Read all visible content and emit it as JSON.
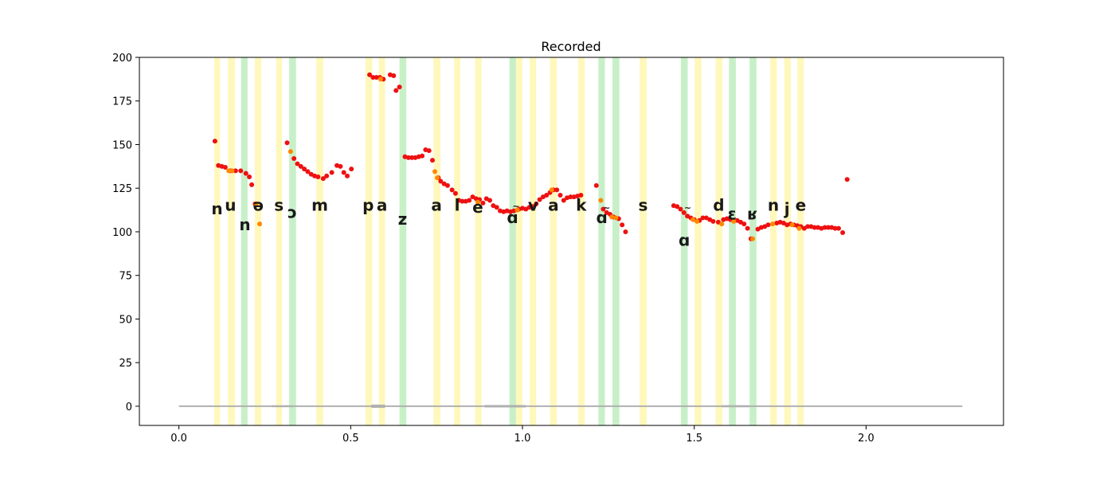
{
  "chart_data": {
    "type": "scatter",
    "title": "Recorded",
    "xlabel": "",
    "ylabel": "",
    "xlim": [
      -0.115,
      2.4
    ],
    "ylim": [
      -11,
      200
    ],
    "x_ticks": [
      0.0,
      0.5,
      1.0,
      1.5,
      2.0
    ],
    "x_tick_labels": [
      "0.0",
      "0.5",
      "1.0",
      "1.5",
      "2.0"
    ],
    "y_ticks": [
      0,
      25,
      50,
      75,
      100,
      125,
      150,
      175,
      200
    ],
    "y_tick_labels": [
      "0",
      "25",
      "50",
      "75",
      "100",
      "125",
      "150",
      "175",
      "200"
    ],
    "grid": false,
    "colors": {
      "pitch_red": "#ee1111",
      "pitch_orange": "#ff8800",
      "band_yellow": "#fff27a",
      "band_green": "#9be39b",
      "waveform": "#b0b0b0",
      "phoneme_text": "#1a1a1a"
    },
    "waveform": {
      "x_start": 0.0,
      "x_end": 2.28,
      "y": 0
    },
    "phoneme_bands": [
      {
        "x0": 0.103,
        "x1": 0.12,
        "kind": "yellow"
      },
      {
        "x0": 0.143,
        "x1": 0.163,
        "kind": "yellow"
      },
      {
        "x0": 0.181,
        "x1": 0.2,
        "kind": "green"
      },
      {
        "x0": 0.221,
        "x1": 0.24,
        "kind": "yellow"
      },
      {
        "x0": 0.283,
        "x1": 0.3,
        "kind": "yellow"
      },
      {
        "x0": 0.321,
        "x1": 0.341,
        "kind": "green"
      },
      {
        "x0": 0.4,
        "x1": 0.42,
        "kind": "yellow"
      },
      {
        "x0": 0.543,
        "x1": 0.563,
        "kind": "yellow"
      },
      {
        "x0": 0.582,
        "x1": 0.6,
        "kind": "yellow"
      },
      {
        "x0": 0.642,
        "x1": 0.662,
        "kind": "green"
      },
      {
        "x0": 0.741,
        "x1": 0.761,
        "kind": "yellow"
      },
      {
        "x0": 0.801,
        "x1": 0.819,
        "kind": "yellow"
      },
      {
        "x0": 0.862,
        "x1": 0.881,
        "kind": "yellow"
      },
      {
        "x0": 0.962,
        "x1": 0.981,
        "kind": "green"
      },
      {
        "x0": 0.981,
        "x1": 1.0,
        "kind": "yellow"
      },
      {
        "x0": 1.021,
        "x1": 1.04,
        "kind": "yellow"
      },
      {
        "x0": 1.08,
        "x1": 1.1,
        "kind": "yellow"
      },
      {
        "x0": 1.162,
        "x1": 1.181,
        "kind": "yellow"
      },
      {
        "x0": 1.221,
        "x1": 1.24,
        "kind": "green"
      },
      {
        "x0": 1.262,
        "x1": 1.282,
        "kind": "green"
      },
      {
        "x0": 1.341,
        "x1": 1.362,
        "kind": "yellow"
      },
      {
        "x0": 1.461,
        "x1": 1.481,
        "kind": "green"
      },
      {
        "x0": 1.501,
        "x1": 1.521,
        "kind": "yellow"
      },
      {
        "x0": 1.562,
        "x1": 1.582,
        "kind": "yellow"
      },
      {
        "x0": 1.601,
        "x1": 1.621,
        "kind": "green"
      },
      {
        "x0": 1.661,
        "x1": 1.681,
        "kind": "green"
      },
      {
        "x0": 1.721,
        "x1": 1.74,
        "kind": "yellow"
      },
      {
        "x0": 1.762,
        "x1": 1.781,
        "kind": "yellow"
      },
      {
        "x0": 1.8,
        "x1": 1.819,
        "kind": "yellow"
      }
    ],
    "phoneme_labels": [
      {
        "text": "n",
        "x": 0.111,
        "y": 110
      },
      {
        "text": "u",
        "x": 0.15,
        "y": 112
      },
      {
        "text": "n",
        "x": 0.192,
        "y": 101
      },
      {
        "text": "ə",
        "x": 0.231,
        "y": 112
      },
      {
        "text": "s",
        "x": 0.291,
        "y": 112
      },
      {
        "text": "ɔ",
        "x": 0.33,
        "y": 108
      },
      {
        "text": "m",
        "x": 0.41,
        "y": 112
      },
      {
        "text": "p",
        "x": 0.551,
        "y": 112
      },
      {
        "text": "a",
        "x": 0.591,
        "y": 112
      },
      {
        "text": "z",
        "x": 0.651,
        "y": 104
      },
      {
        "text": "a",
        "x": 0.75,
        "y": 112
      },
      {
        "text": "l",
        "x": 0.81,
        "y": 112
      },
      {
        "text": "e",
        "x": 0.87,
        "y": 111
      },
      {
        "text": "ɑ",
        "x": 0.971,
        "y": 105
      },
      {
        "text": "~",
        "x": 0.981,
        "y": 113
      },
      {
        "text": "v",
        "x": 1.031,
        "y": 112
      },
      {
        "text": "a",
        "x": 1.09,
        "y": 112
      },
      {
        "text": "k",
        "x": 1.171,
        "y": 112
      },
      {
        "text": "ɑ",
        "x": 1.231,
        "y": 105
      },
      {
        "text": "~",
        "x": 1.245,
        "y": 112
      },
      {
        "text": "s",
        "x": 1.351,
        "y": 112
      },
      {
        "text": "ɑ",
        "x": 1.471,
        "y": 92
      },
      {
        "text": "~",
        "x": 1.481,
        "y": 112
      },
      {
        "text": "d",
        "x": 1.571,
        "y": 112
      },
      {
        "text": "ɛ",
        "x": 1.61,
        "y": 107
      },
      {
        "text": "ʁ",
        "x": 1.67,
        "y": 107
      },
      {
        "text": "n",
        "x": 1.73,
        "y": 112
      },
      {
        "text": "j",
        "x": 1.77,
        "y": 110
      },
      {
        "text": "e",
        "x": 1.81,
        "y": 112
      }
    ],
    "series": [
      {
        "color": "#ee1111",
        "points": [
          [
            0.105,
            152
          ],
          [
            0.115,
            138
          ],
          [
            0.125,
            137.5
          ],
          [
            0.135,
            137
          ],
          [
            0.15,
            135
          ],
          [
            0.165,
            135
          ],
          [
            0.18,
            135
          ],
          [
            0.195,
            133.5
          ],
          [
            0.205,
            131.5
          ],
          [
            0.212,
            127
          ],
          [
            0.222,
            116
          ],
          [
            0.315,
            151
          ],
          [
            0.335,
            142
          ],
          [
            0.345,
            139
          ],
          [
            0.355,
            137.5
          ],
          [
            0.365,
            136
          ],
          [
            0.375,
            134.5
          ],
          [
            0.385,
            133
          ],
          [
            0.395,
            132
          ],
          [
            0.405,
            131.5
          ],
          [
            0.42,
            130.5
          ],
          [
            0.43,
            132
          ],
          [
            0.445,
            134
          ],
          [
            0.46,
            138
          ],
          [
            0.47,
            137.5
          ],
          [
            0.48,
            134
          ],
          [
            0.49,
            132
          ],
          [
            0.502,
            136
          ],
          [
            0.555,
            190
          ],
          [
            0.565,
            188.5
          ],
          [
            0.575,
            188.5
          ],
          [
            0.585,
            188.5
          ],
          [
            0.595,
            187.5
          ],
          [
            0.615,
            190
          ],
          [
            0.625,
            189.5
          ],
          [
            0.632,
            181
          ],
          [
            0.642,
            183
          ],
          [
            0.658,
            143
          ],
          [
            0.668,
            142.5
          ],
          [
            0.678,
            142.5
          ],
          [
            0.688,
            142.5
          ],
          [
            0.698,
            143
          ],
          [
            0.708,
            143.5
          ],
          [
            0.718,
            147
          ],
          [
            0.728,
            146.5
          ],
          [
            0.738,
            141
          ],
          [
            0.755,
            131
          ],
          [
            0.762,
            129
          ],
          [
            0.772,
            127.5
          ],
          [
            0.782,
            126.5
          ],
          [
            0.795,
            124
          ],
          [
            0.805,
            122
          ],
          [
            0.815,
            118
          ],
          [
            0.825,
            117.5
          ],
          [
            0.835,
            117.5
          ],
          [
            0.845,
            118
          ],
          [
            0.855,
            120
          ],
          [
            0.865,
            119
          ],
          [
            0.875,
            118.5
          ],
          [
            0.885,
            116.5
          ],
          [
            0.895,
            119
          ],
          [
            0.905,
            118
          ],
          [
            0.915,
            115
          ],
          [
            0.925,
            114
          ],
          [
            0.935,
            112
          ],
          [
            0.945,
            111.5
          ],
          [
            0.955,
            112
          ],
          [
            0.965,
            111.5
          ],
          [
            0.975,
            112
          ],
          [
            0.99,
            113
          ],
          [
            1.0,
            113.5
          ],
          [
            1.01,
            113
          ],
          [
            1.02,
            114
          ],
          [
            1.03,
            114.5
          ],
          [
            1.04,
            116
          ],
          [
            1.05,
            118.5
          ],
          [
            1.06,
            120
          ],
          [
            1.07,
            121
          ],
          [
            1.08,
            122.5
          ],
          [
            1.09,
            124
          ],
          [
            1.1,
            124
          ],
          [
            1.11,
            121
          ],
          [
            1.12,
            118
          ],
          [
            1.13,
            119.5
          ],
          [
            1.14,
            120
          ],
          [
            1.15,
            120
          ],
          [
            1.16,
            120.5
          ],
          [
            1.17,
            121
          ],
          [
            1.215,
            126.5
          ],
          [
            1.235,
            113
          ],
          [
            1.245,
            111
          ],
          [
            1.255,
            110
          ],
          [
            1.265,
            108.5
          ],
          [
            1.28,
            107.5
          ],
          [
            1.29,
            104
          ],
          [
            1.3,
            100
          ],
          [
            1.44,
            115
          ],
          [
            1.45,
            114.5
          ],
          [
            1.46,
            113
          ],
          [
            1.47,
            111
          ],
          [
            1.48,
            109
          ],
          [
            1.49,
            108
          ],
          [
            1.5,
            107
          ],
          [
            1.515,
            106.5
          ],
          [
            1.525,
            108
          ],
          [
            1.535,
            108
          ],
          [
            1.545,
            107
          ],
          [
            1.555,
            106
          ],
          [
            1.57,
            105.5
          ],
          [
            1.585,
            107
          ],
          [
            1.595,
            107.5
          ],
          [
            1.605,
            107
          ],
          [
            1.625,
            106.5
          ],
          [
            1.635,
            105.5
          ],
          [
            1.645,
            104.5
          ],
          [
            1.655,
            102
          ],
          [
            1.665,
            96
          ],
          [
            1.685,
            101.5
          ],
          [
            1.695,
            102.5
          ],
          [
            1.705,
            103
          ],
          [
            1.715,
            104
          ],
          [
            1.74,
            105
          ],
          [
            1.75,
            105.5
          ],
          [
            1.76,
            105
          ],
          [
            1.77,
            104
          ],
          [
            1.78,
            104.5
          ],
          [
            1.79,
            104
          ],
          [
            1.8,
            103.5
          ],
          [
            1.81,
            103
          ],
          [
            1.82,
            102
          ],
          [
            1.83,
            103
          ],
          [
            1.84,
            103
          ],
          [
            1.85,
            102.5
          ],
          [
            1.86,
            102.5
          ],
          [
            1.87,
            102
          ],
          [
            1.88,
            102.5
          ],
          [
            1.89,
            102.5
          ],
          [
            1.9,
            102.5
          ],
          [
            1.91,
            102
          ],
          [
            1.92,
            102
          ],
          [
            1.932,
            99.5
          ],
          [
            1.945,
            130
          ]
        ]
      },
      {
        "color": "#ff8800",
        "points": [
          [
            0.145,
            135
          ],
          [
            0.155,
            135
          ],
          [
            0.225,
            116
          ],
          [
            0.235,
            104.5
          ],
          [
            0.325,
            146
          ],
          [
            0.587,
            187.5
          ],
          [
            0.745,
            134.5
          ],
          [
            0.752,
            131
          ],
          [
            0.87,
            117
          ],
          [
            0.985,
            112.5
          ],
          [
            1.085,
            124
          ],
          [
            1.228,
            118
          ],
          [
            1.26,
            108.5
          ],
          [
            1.272,
            108
          ],
          [
            1.496,
            107
          ],
          [
            1.508,
            106
          ],
          [
            1.58,
            104.5
          ],
          [
            1.615,
            106
          ],
          [
            1.67,
            96
          ],
          [
            1.728,
            104.5
          ],
          [
            1.785,
            104
          ],
          [
            1.805,
            102
          ]
        ]
      }
    ]
  }
}
